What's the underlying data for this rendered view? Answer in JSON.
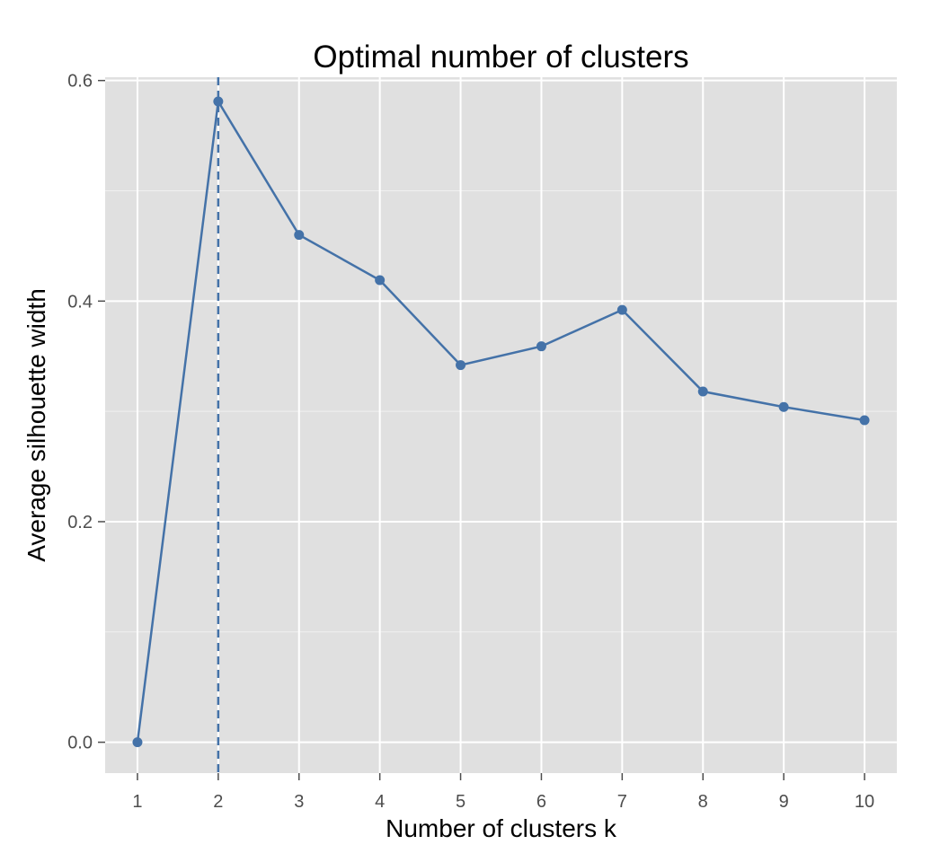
{
  "chart_data": {
    "type": "line",
    "title": "Optimal number of clusters",
    "xlabel": "Number of clusters k",
    "ylabel": "Average silhouette width",
    "categories": [
      "1",
      "2",
      "3",
      "4",
      "5",
      "6",
      "7",
      "8",
      "9",
      "10"
    ],
    "series": [
      {
        "values": [
          0.0,
          0.581,
          0.46,
          0.419,
          0.342,
          0.359,
          0.392,
          0.318,
          0.304,
          0.292
        ]
      }
    ],
    "optimal_k": 2,
    "optimal_k_line": "dashed vertical",
    "ylim": [
      -0.028,
      0.603
    ],
    "yticks": [
      0.0,
      0.2,
      0.4,
      0.6
    ],
    "ytick_labels": [
      "0.0",
      "0.2",
      "0.4",
      "0.6"
    ],
    "grid": true,
    "legend": "none",
    "colors": {
      "line": "#4472a8",
      "panel_background": "#e0e0e0",
      "grid": "#ffffff",
      "tick_label": "#4d4d4d"
    }
  }
}
